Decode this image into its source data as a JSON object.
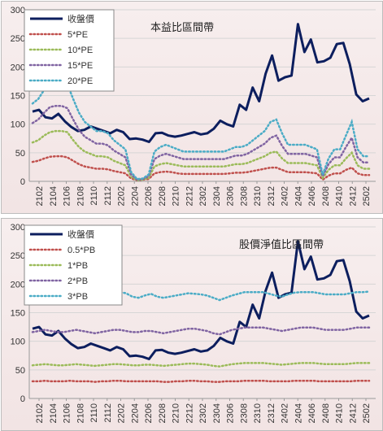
{
  "chart_data": [
    {
      "type": "line",
      "title": "本益比區間帶",
      "ylim": [
        0,
        300
      ],
      "yticks": [
        0,
        50,
        100,
        150,
        200,
        250,
        300
      ],
      "grid": true,
      "legend_placement": "top-left",
      "xtick_labels": [
        "2102",
        "2104",
        "2106",
        "2108",
        "2110",
        "2112",
        "2202",
        "2204",
        "2206",
        "2208",
        "2210",
        "2212",
        "2302",
        "2304",
        "2306",
        "2308",
        "2310",
        "2312",
        "2402",
        "2404",
        "2406",
        "2408",
        "2410",
        "2412",
        "2502"
      ],
      "series": [
        {
          "name": "收盤價",
          "color": "#0c1e5e",
          "style": "solid",
          "values": [
            122,
            125,
            112,
            110,
            118,
            105,
            95,
            88,
            90,
            96,
            92,
            88,
            84,
            90,
            86,
            74,
            75,
            73,
            69,
            84,
            85,
            80,
            78,
            80,
            83,
            86,
            82,
            84,
            92,
            106,
            100,
            96,
            134,
            125,
            164,
            140,
            188,
            220,
            176,
            182,
            185,
            275,
            226,
            248,
            208,
            210,
            216,
            240,
            242,
            205,
            152,
            140,
            145
          ]
        },
        {
          "name": "5*PE",
          "color": "#c0504d",
          "style": "dotted",
          "values": [
            34,
            36,
            40,
            43,
            44,
            44,
            42,
            36,
            30,
            26,
            24,
            22,
            22,
            21,
            18,
            16,
            14,
            5,
            2,
            3,
            4,
            14,
            16,
            17,
            16,
            14,
            13,
            13,
            13,
            13,
            13,
            13,
            13,
            13,
            14,
            15,
            15,
            16,
            18,
            20,
            22,
            24,
            24,
            20,
            16,
            16,
            16,
            16,
            15,
            14,
            3,
            10,
            14,
            14,
            20,
            24,
            14,
            11,
            11
          ]
        },
        {
          "name": "10*PE",
          "color": "#9bbb59",
          "style": "dotted",
          "values": [
            68,
            72,
            80,
            86,
            88,
            88,
            86,
            72,
            60,
            52,
            48,
            44,
            44,
            42,
            36,
            32,
            28,
            8,
            2,
            3,
            6,
            26,
            30,
            32,
            30,
            28,
            26,
            26,
            26,
            26,
            26,
            26,
            26,
            26,
            28,
            30,
            30,
            32,
            36,
            40,
            44,
            50,
            52,
            40,
            32,
            32,
            32,
            32,
            30,
            28,
            6,
            20,
            28,
            28,
            40,
            50,
            28,
            22,
            22
          ]
        },
        {
          "name": "15*PE",
          "color": "#8064a2",
          "style": "dotted",
          "values": [
            102,
            108,
            120,
            130,
            132,
            132,
            128,
            108,
            90,
            78,
            72,
            66,
            66,
            63,
            54,
            48,
            42,
            12,
            3,
            4,
            9,
            39,
            45,
            48,
            45,
            42,
            39,
            39,
            39,
            39,
            39,
            39,
            39,
            39,
            42,
            45,
            45,
            48,
            54,
            60,
            66,
            76,
            80,
            62,
            48,
            48,
            48,
            48,
            45,
            42,
            9,
            30,
            42,
            42,
            60,
            76,
            42,
            33,
            33
          ]
        },
        {
          "name": "20*PE",
          "color": "#4bacc6",
          "style": "dotted",
          "values": [
            136,
            144,
            160,
            172,
            176,
            176,
            170,
            144,
            120,
            104,
            96,
            88,
            88,
            84,
            72,
            64,
            56,
            16,
            4,
            5,
            12,
            52,
            60,
            64,
            60,
            56,
            52,
            52,
            52,
            52,
            52,
            52,
            52,
            52,
            56,
            60,
            60,
            64,
            72,
            80,
            88,
            104,
            108,
            84,
            64,
            64,
            64,
            64,
            60,
            56,
            12,
            40,
            56,
            56,
            80,
            104,
            56,
            44,
            44
          ]
        }
      ]
    },
    {
      "type": "line",
      "title": "股價淨值比區間帶",
      "ylim": [
        0,
        300
      ],
      "yticks": [
        0,
        50,
        100,
        150,
        200,
        250,
        300
      ],
      "grid": true,
      "legend_placement": "top-left",
      "xtick_labels": [
        "2102",
        "2104",
        "2106",
        "2108",
        "2110",
        "2112",
        "2202",
        "2204",
        "2206",
        "2208",
        "2210",
        "2212",
        "2302",
        "2304",
        "2306",
        "2308",
        "2310",
        "2312",
        "2402",
        "2404",
        "2406",
        "2408",
        "2410",
        "2412",
        "2502"
      ],
      "series": [
        {
          "name": "收盤價",
          "color": "#0c1e5e",
          "style": "solid",
          "values": [
            122,
            125,
            112,
            110,
            118,
            105,
            95,
            88,
            90,
            96,
            92,
            88,
            84,
            90,
            86,
            74,
            75,
            73,
            69,
            84,
            85,
            80,
            78,
            80,
            83,
            86,
            82,
            84,
            92,
            106,
            100,
            96,
            134,
            125,
            164,
            140,
            188,
            220,
            176,
            182,
            185,
            275,
            226,
            248,
            208,
            210,
            216,
            240,
            242,
            205,
            152,
            140,
            145
          ]
        },
        {
          "name": "0.5*PB",
          "color": "#c0504d",
          "style": "dotted",
          "values": [
            30,
            30,
            31,
            30,
            30,
            30,
            31,
            30,
            30,
            30,
            29,
            30,
            30,
            31,
            31,
            30,
            30,
            30,
            30,
            30,
            30,
            29,
            29,
            30,
            30,
            31,
            31,
            30,
            30,
            29,
            29,
            30,
            30,
            30,
            31,
            31,
            31,
            31,
            30,
            30,
            30,
            30,
            31,
            31,
            31,
            31,
            30,
            30,
            30,
            30,
            30,
            30,
            31,
            31,
            31
          ]
        },
        {
          "name": "1*PB",
          "color": "#9bbb59",
          "style": "dotted",
          "values": [
            58,
            59,
            60,
            59,
            58,
            58,
            59,
            60,
            59,
            58,
            57,
            58,
            59,
            60,
            60,
            59,
            58,
            58,
            59,
            59,
            58,
            57,
            58,
            59,
            60,
            61,
            61,
            60,
            59,
            57,
            56,
            58,
            60,
            61,
            62,
            62,
            62,
            62,
            61,
            60,
            59,
            60,
            61,
            62,
            62,
            62,
            61,
            60,
            60,
            60,
            60,
            61,
            62,
            62,
            62
          ]
        },
        {
          "name": "2*PB",
          "color": "#8064a2",
          "style": "dotted",
          "values": [
            116,
            118,
            120,
            118,
            116,
            116,
            118,
            120,
            118,
            116,
            114,
            116,
            118,
            120,
            120,
            118,
            116,
            116,
            118,
            118,
            116,
            114,
            116,
            118,
            120,
            122,
            122,
            120,
            118,
            114,
            112,
            116,
            120,
            122,
            124,
            124,
            124,
            124,
            122,
            120,
            118,
            120,
            122,
            124,
            124,
            124,
            122,
            120,
            120,
            120,
            120,
            122,
            124,
            124,
            124
          ]
        },
        {
          "name": "3*PB",
          "color": "#4bacc6",
          "style": "dotted",
          "values": [
            174,
            177,
            180,
            177,
            174,
            174,
            177,
            180,
            177,
            174,
            171,
            174,
            177,
            180,
            186,
            184,
            178,
            176,
            180,
            183,
            178,
            176,
            178,
            180,
            182,
            184,
            183,
            182,
            180,
            176,
            172,
            176,
            180,
            183,
            186,
            186,
            186,
            186,
            183,
            180,
            178,
            182,
            185,
            186,
            186,
            186,
            184,
            182,
            182,
            182,
            182,
            184,
            186,
            186,
            187
          ]
        }
      ]
    }
  ]
}
